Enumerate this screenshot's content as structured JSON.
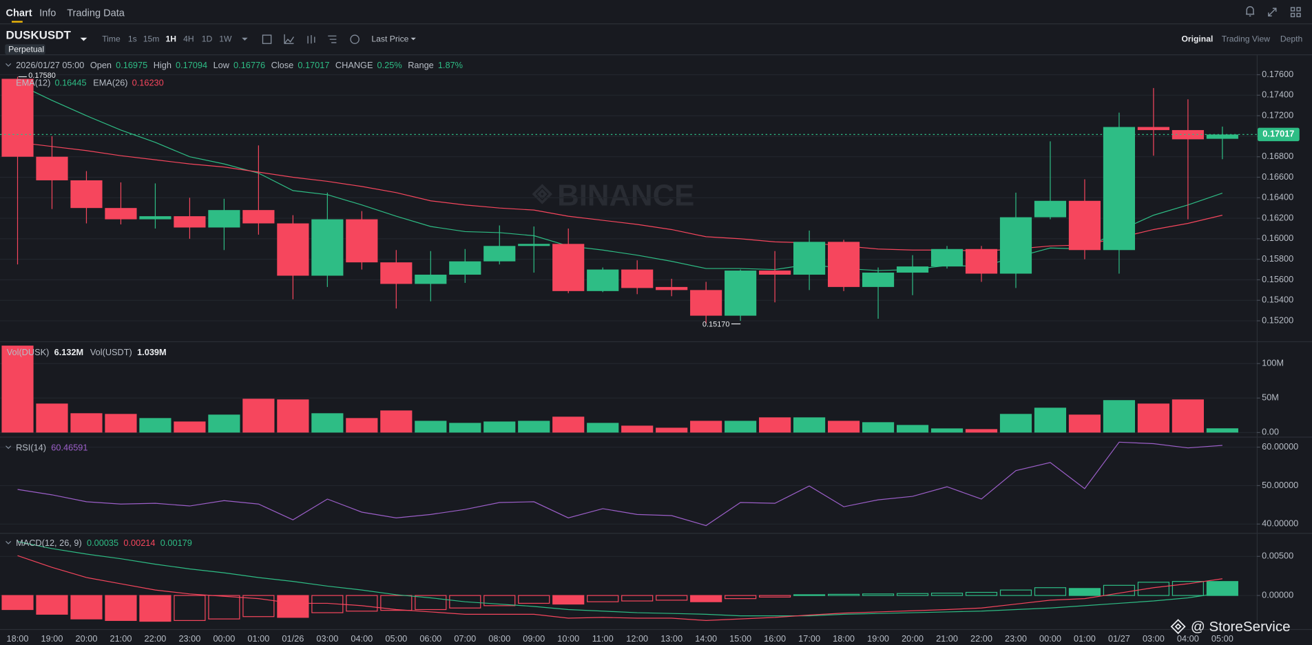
{
  "ui": {
    "nav": {
      "tabs": [
        "Chart",
        "Info",
        "Trading Data"
      ]
    },
    "toolbar": {
      "symbol": "DUSKUSDT",
      "badge": "Perpetual",
      "intervals": [
        "Time",
        "1s",
        "15m",
        "1H",
        "4H",
        "1D",
        "1W"
      ],
      "price_type": "Last Price",
      "views": [
        "Original",
        "Trading View",
        "Depth"
      ]
    },
    "ohlc_info": {
      "time": "2026/01/27 05:00",
      "fields": [
        {
          "label": "Open",
          "value": "0.16975"
        },
        {
          "label": "High",
          "value": "0.17094"
        },
        {
          "label": "Low",
          "value": "0.16776"
        },
        {
          "label": "Close",
          "value": "0.17017"
        },
        {
          "label": "CHANGE",
          "value": "0.25%"
        },
        {
          "label": "Range",
          "value": "1.87%"
        }
      ]
    },
    "watermark": "BINANCE",
    "credit": "@ StoreService"
  },
  "chart_data": [
    {
      "type": "candlestick",
      "up_color": "#2ebd85",
      "down_color": "#f6465d",
      "categories": [
        "18:00",
        "19:00",
        "20:00",
        "21:00",
        "22:00",
        "23:00",
        "00:00",
        "01:00",
        "01/26",
        "03:00",
        "04:00",
        "05:00",
        "06:00",
        "07:00",
        "08:00",
        "09:00",
        "10:00",
        "11:00",
        "12:00",
        "13:00",
        "14:00",
        "15:00",
        "16:00",
        "17:00",
        "18:00",
        "19:00",
        "20:00",
        "21:00",
        "22:00",
        "23:00",
        "00:00",
        "01:00",
        "01/27",
        "03:00",
        "04:00",
        "05:00"
      ],
      "open": [
        0.1756,
        0.168,
        0.1657,
        0.163,
        0.1619,
        0.1622,
        0.1611,
        0.1628,
        0.1615,
        0.1564,
        0.1619,
        0.1577,
        0.1556,
        0.1565,
        0.1578,
        0.1593,
        0.1595,
        0.1549,
        0.157,
        0.1553,
        0.155,
        0.1525,
        0.1569,
        0.1565,
        0.1597,
        0.1553,
        0.1567,
        0.1573,
        0.159,
        0.1566,
        0.1621,
        0.1637,
        0.1589,
        0.1709,
        0.1706,
        0.16975
      ],
      "high": [
        0.1758,
        0.17,
        0.1666,
        0.1655,
        0.1654,
        0.164,
        0.1639,
        0.1691,
        0.1623,
        0.1645,
        0.1627,
        0.1589,
        0.1588,
        0.159,
        0.1613,
        0.1612,
        0.161,
        0.1572,
        0.1579,
        0.1561,
        0.1558,
        0.157,
        0.1588,
        0.1608,
        0.1599,
        0.1572,
        0.1584,
        0.1593,
        0.1593,
        0.1645,
        0.1695,
        0.1658,
        0.1723,
        0.1747,
        0.1736,
        0.17094
      ],
      "low": [
        0.1575,
        0.1629,
        0.1615,
        0.1614,
        0.161,
        0.16,
        0.1589,
        0.1604,
        0.1541,
        0.1553,
        0.157,
        0.1532,
        0.1539,
        0.1557,
        0.1575,
        0.1567,
        0.1547,
        0.1548,
        0.1546,
        0.1544,
        0.1517,
        0.152,
        0.1538,
        0.155,
        0.1549,
        0.1522,
        0.1545,
        0.1571,
        0.1558,
        0.1552,
        0.1619,
        0.158,
        0.1566,
        0.1681,
        0.1619,
        0.16776
      ],
      "close": [
        0.168,
        0.1657,
        0.163,
        0.1619,
        0.1622,
        0.1611,
        0.1628,
        0.1615,
        0.1564,
        0.1619,
        0.1577,
        0.1556,
        0.1565,
        0.1578,
        0.1593,
        0.1595,
        0.1549,
        0.157,
        0.1552,
        0.155,
        0.1525,
        0.1569,
        0.1565,
        0.1597,
        0.1553,
        0.1567,
        0.1573,
        0.159,
        0.1566,
        0.1621,
        0.1637,
        0.1589,
        0.1709,
        0.1706,
        0.1697,
        0.17017
      ],
      "series": [
        {
          "name": "EMA(12)",
          "color": "#2ebd85",
          "last_label": "0.16445",
          "values": [
            0.1751,
            0.1735,
            0.172,
            0.1706,
            0.1694,
            0.168,
            0.1673,
            0.1664,
            0.1647,
            0.1643,
            0.1633,
            0.1622,
            0.1612,
            0.1607,
            0.1606,
            0.1603,
            0.1593,
            0.1589,
            0.1584,
            0.1578,
            0.1571,
            0.1571,
            0.157,
            0.1575,
            0.1571,
            0.1569,
            0.157,
            0.1574,
            0.1573,
            0.1582,
            0.1591,
            0.159,
            0.1608,
            0.1623,
            0.1633,
            0.16445
          ]
        },
        {
          "name": "EMA(26)",
          "color": "#f6465d",
          "last_label": "0.16230",
          "values": [
            0.1694,
            0.169,
            0.1686,
            0.1681,
            0.1677,
            0.1673,
            0.167,
            0.1665,
            0.166,
            0.1656,
            0.1651,
            0.1645,
            0.1637,
            0.1633,
            0.163,
            0.1628,
            0.1622,
            0.1618,
            0.1614,
            0.1609,
            0.1602,
            0.16,
            0.1597,
            0.1596,
            0.1593,
            0.159,
            0.1589,
            0.1589,
            0.1588,
            0.159,
            0.1593,
            0.1594,
            0.1601,
            0.1609,
            0.1615,
            0.1623
          ]
        }
      ],
      "last_price": {
        "value": 0.17017,
        "label": "0.17017"
      },
      "high_marker": {
        "value": 0.1758,
        "label": "0.17580"
      },
      "low_marker": {
        "value": 0.1517,
        "label": "0.15170"
      },
      "ylim": [
        0.15,
        0.1779
      ],
      "yticks": [
        {
          "value": 0.152,
          "label": "0.15200"
        },
        {
          "value": 0.154,
          "label": "0.15400"
        },
        {
          "value": 0.156,
          "label": "0.15600"
        },
        {
          "value": 0.158,
          "label": "0.15800"
        },
        {
          "value": 0.16,
          "label": "0.16000"
        },
        {
          "value": 0.162,
          "label": "0.16200"
        },
        {
          "value": 0.164,
          "label": "0.16400"
        },
        {
          "value": 0.166,
          "label": "0.16600"
        },
        {
          "value": 0.168,
          "label": "0.16800"
        },
        {
          "value": 0.17,
          "label": "0.17000"
        },
        {
          "value": 0.172,
          "label": "0.17200"
        },
        {
          "value": 0.174,
          "label": "0.17400"
        },
        {
          "value": 0.176,
          "label": "0.17600"
        }
      ],
      "grid": true
    },
    {
      "type": "bar",
      "legend": [
        {
          "name": "Vol(DUSK)",
          "label": "6.132M"
        },
        {
          "name": "Vol(USDT)",
          "label": "1.039M"
        }
      ],
      "values": [
        126000000,
        42000000,
        28000000,
        27000000,
        21000000,
        16000000,
        26000000,
        49000000,
        48000000,
        28000000,
        21000000,
        32000000,
        17000000,
        14000000,
        16000000,
        17000000,
        23000000,
        14000000,
        10000000,
        7000000,
        17000000,
        17000000,
        22000000,
        22000000,
        17000000,
        15000000,
        11000000,
        6000000,
        5000000,
        27000000,
        36000000,
        26000000,
        47000000,
        42000000,
        48000000,
        6132000
      ],
      "ylim": [
        -6000000,
        131000000
      ],
      "yticks": [
        {
          "value": 0,
          "label": "0.00"
        },
        {
          "value": 50000000,
          "label": "50M"
        },
        {
          "value": 100000000,
          "label": "100M"
        }
      ],
      "grid": true
    },
    {
      "type": "line",
      "series": [
        {
          "name": "RSI(14)",
          "color": "#9c5fc9",
          "last_label": "60.46591",
          "values": [
            49.0,
            47.6,
            45.8,
            45.2,
            45.4,
            44.7,
            46.1,
            45.2,
            41.1,
            46.5,
            43.1,
            41.6,
            42.5,
            43.8,
            45.6,
            45.8,
            41.6,
            44.0,
            42.5,
            42.2,
            39.6,
            45.6,
            45.4,
            49.9,
            44.5,
            46.3,
            47.2,
            49.7,
            46.5,
            53.9,
            56.0,
            49.2,
            61.3,
            60.9,
            59.8,
            60.46591
          ]
        }
      ],
      "ylim": [
        37.7,
        62.5
      ],
      "yticks": [
        {
          "value": 40,
          "label": "40.00000"
        },
        {
          "value": 50,
          "label": "50.00000"
        },
        {
          "value": 60,
          "label": "60.00000"
        }
      ],
      "grid": true
    },
    {
      "type": "macd",
      "legend": {
        "name": "MACD(12, 26, 9)",
        "labels": [
          "0.00035",
          "0.00214",
          "0.00179"
        ]
      },
      "up_color": "#2ebd85",
      "down_color": "#f6465d",
      "histogram": [
        -0.0018,
        -0.0024,
        -0.003,
        -0.0032,
        -0.0033,
        -0.0032,
        -0.003,
        -0.0027,
        -0.0028,
        -0.0022,
        -0.002,
        -0.0019,
        -0.0018,
        -0.0016,
        -0.0013,
        -0.001,
        -0.0011,
        -0.0008,
        -0.0007,
        -0.0006,
        -0.0008,
        -0.0004,
        -0.0002,
        0.0001,
        0.00015,
        0.0002,
        0.00025,
        0.0003,
        0.0004,
        0.0007,
        0.001,
        0.0009,
        0.0013,
        0.0017,
        0.0018,
        0.00179
      ],
      "series": [
        {
          "color": "#2ebd85",
          "values": [
            0.0069,
            0.006,
            0.0053,
            0.0047,
            0.004,
            0.0034,
            0.0029,
            0.0023,
            0.0018,
            0.0012,
            0.0007,
            0.0001,
            -0.0003,
            -0.0008,
            -0.0011,
            -0.0014,
            -0.0018,
            -0.002,
            -0.0022,
            -0.0023,
            -0.0024,
            -0.0026,
            -0.0026,
            -0.0026,
            -0.0024,
            -0.0023,
            -0.0022,
            -0.0021,
            -0.002,
            -0.0018,
            -0.0016,
            -0.0013,
            -0.001,
            -0.0007,
            -0.0003,
            0.00035
          ]
        },
        {
          "color": "#f6465d",
          "values": [
            0.0051,
            0.0036,
            0.0023,
            0.0015,
            0.0007,
            0.0002,
            -0.0001,
            -0.0004,
            -0.001,
            -0.001,
            -0.0013,
            -0.0018,
            -0.0021,
            -0.0024,
            -0.0024,
            -0.0024,
            -0.0029,
            -0.0028,
            -0.0029,
            -0.0029,
            -0.0032,
            -0.003,
            -0.0028,
            -0.0025,
            -0.00225,
            -0.0021,
            -0.00195,
            -0.0018,
            -0.0016,
            -0.0011,
            -0.0006,
            -0.0004,
            0.0003,
            0.001,
            0.0015,
            0.00214
          ]
        }
      ],
      "ylim": [
        -0.0043,
        0.0079
      ],
      "yticks": [
        {
          "value": 0,
          "label": "0.00000"
        },
        {
          "value": 0.005,
          "label": "0.00500"
        }
      ],
      "grid": true
    }
  ]
}
